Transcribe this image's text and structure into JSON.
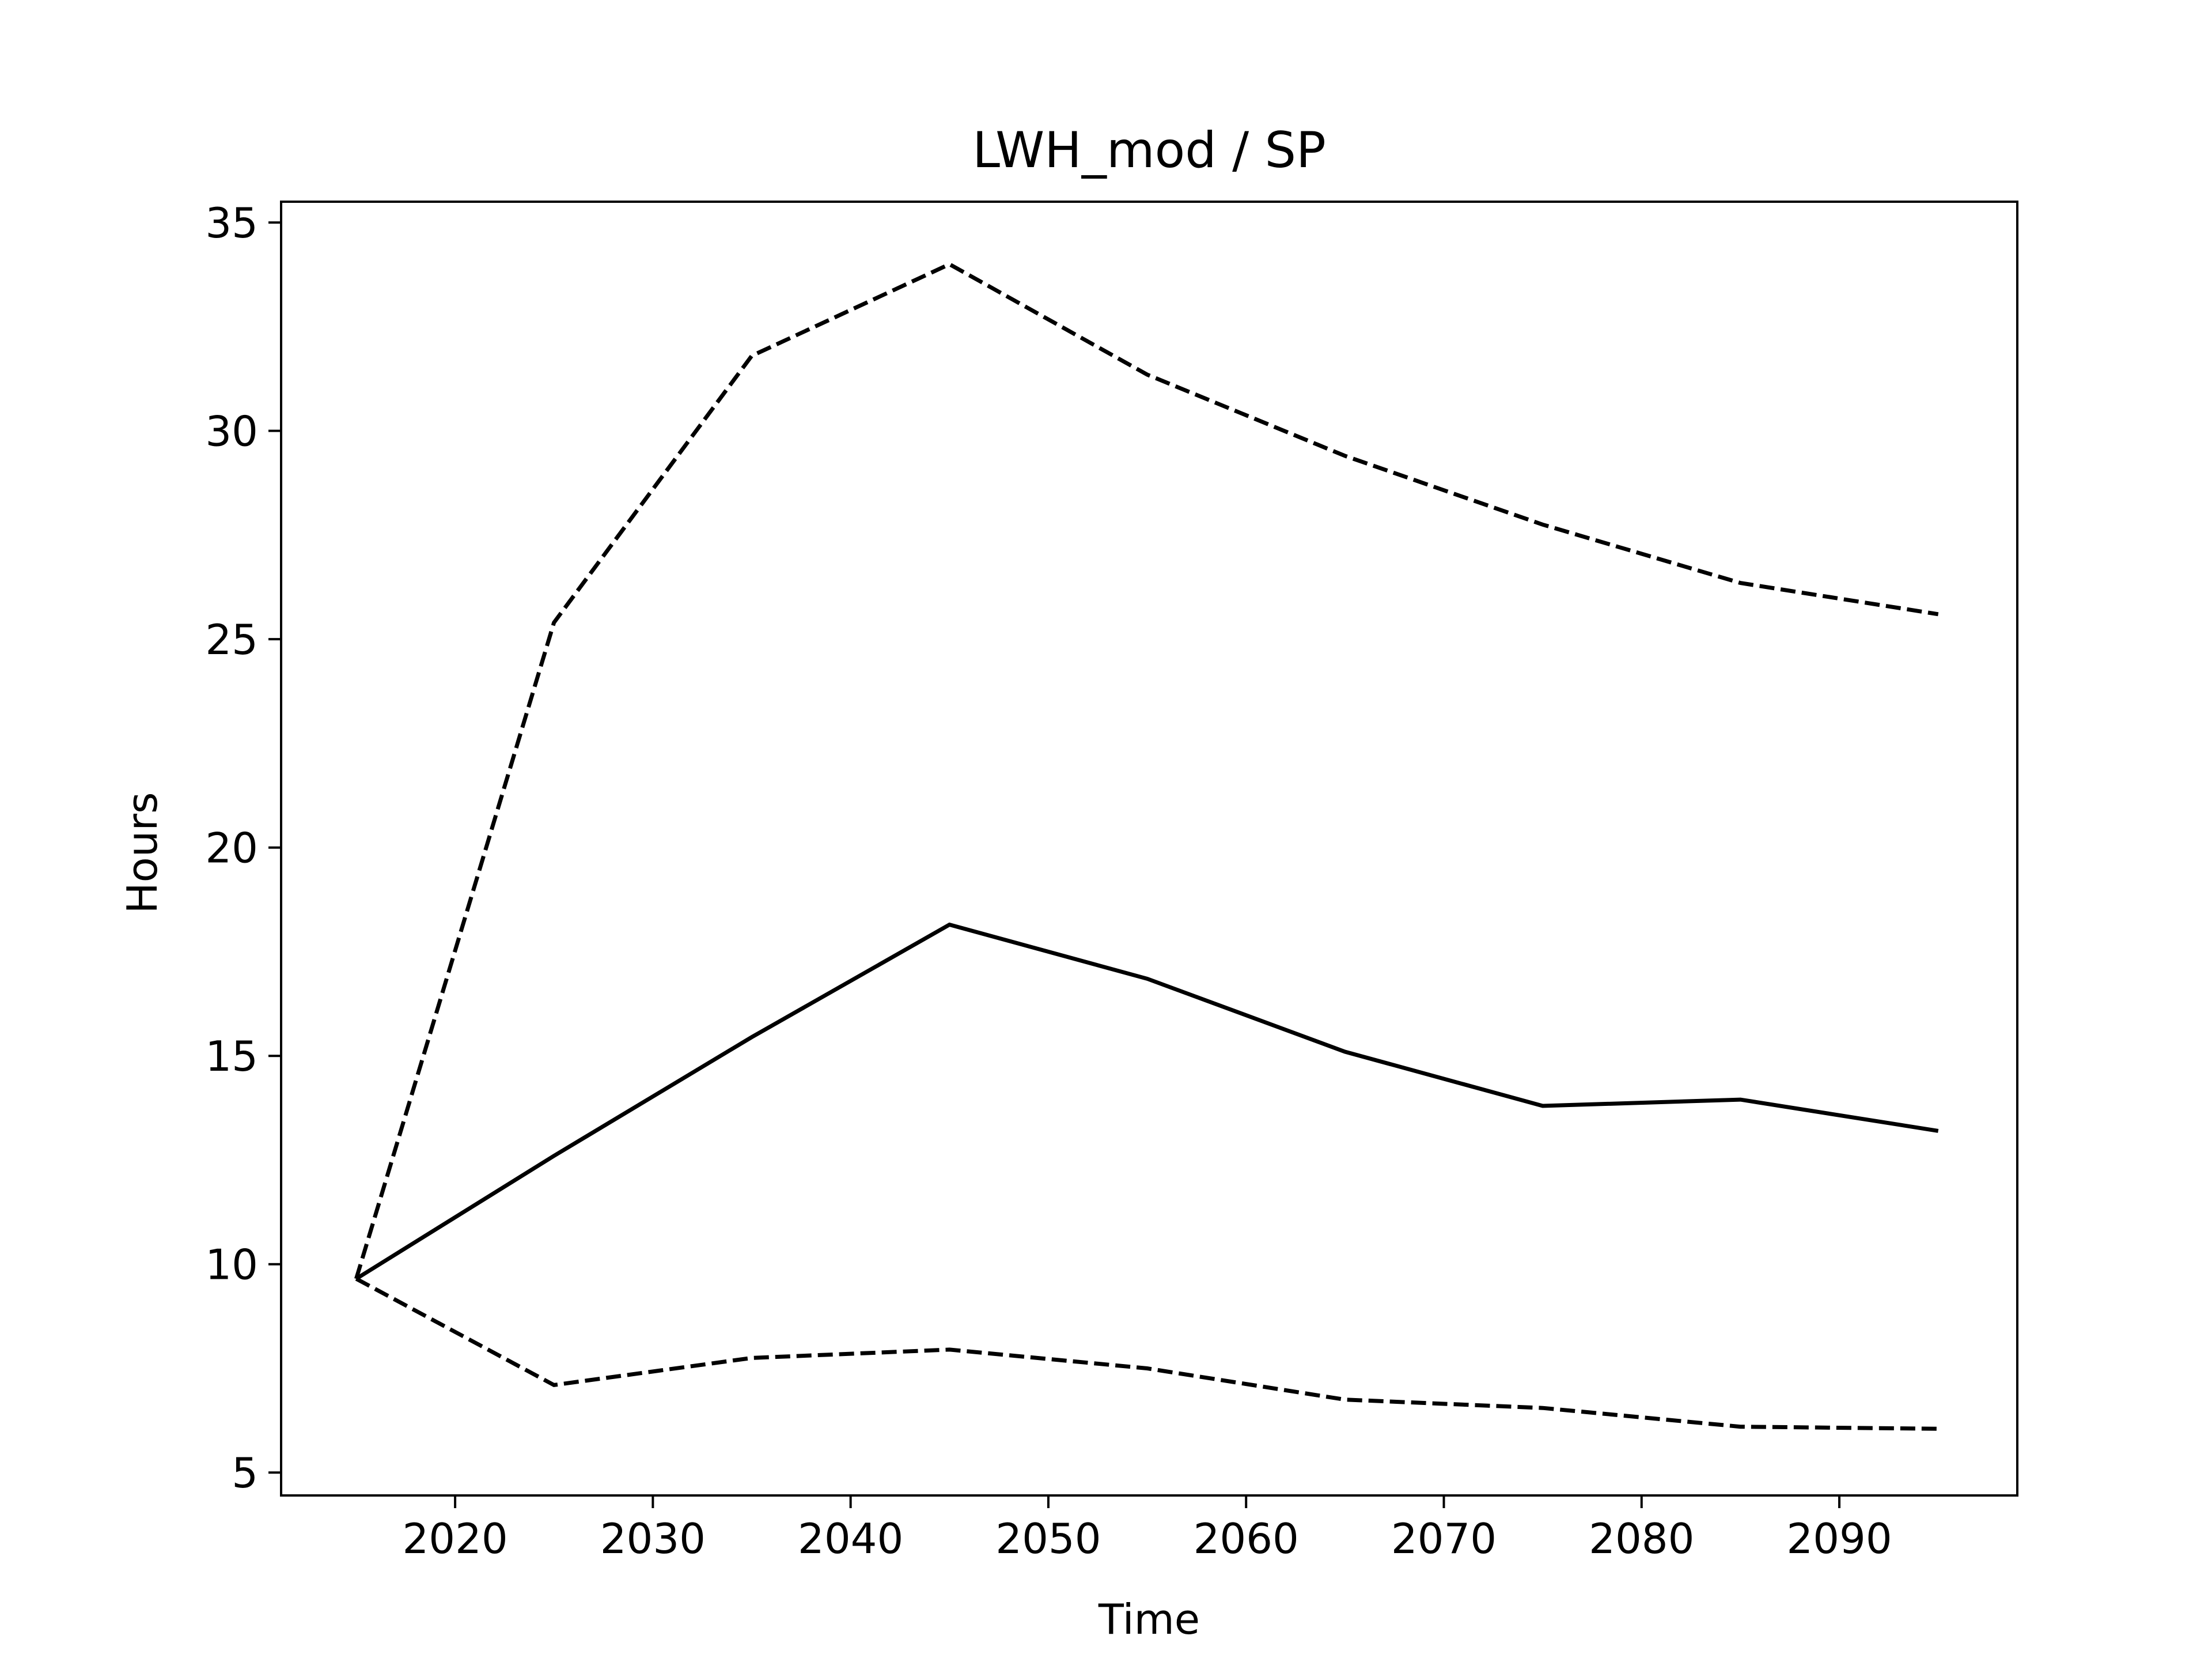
{
  "chart_data": {
    "type": "line",
    "title": "LWH_mod / SP",
    "xlabel": "Time",
    "ylabel": "Hours",
    "xlim": [
      2011.2,
      2099
    ],
    "ylim": [
      4.45,
      35.5
    ],
    "xticks": [
      2020,
      2030,
      2040,
      2050,
      2060,
      2070,
      2080,
      2090
    ],
    "yticks": [
      5,
      10,
      15,
      20,
      25,
      30,
      35
    ],
    "grid": false,
    "legend": false,
    "x": [
      2015,
      2025,
      2035,
      2045,
      2055,
      2065,
      2075,
      2085,
      2095
    ],
    "series": [
      {
        "style": "dashed",
        "color": "#000000",
        "values": [
          9.65,
          25.4,
          31.8,
          34.0,
          31.35,
          29.4,
          27.75,
          26.35,
          25.6
        ]
      },
      {
        "style": "solid",
        "color": "#000000",
        "values": [
          9.65,
          12.6,
          15.45,
          18.15,
          16.85,
          15.1,
          13.8,
          13.95,
          13.2
        ]
      },
      {
        "style": "dashed",
        "color": "#000000",
        "values": [
          9.65,
          7.1,
          7.75,
          7.95,
          7.5,
          6.75,
          6.55,
          6.1,
          6.05
        ]
      }
    ]
  }
}
